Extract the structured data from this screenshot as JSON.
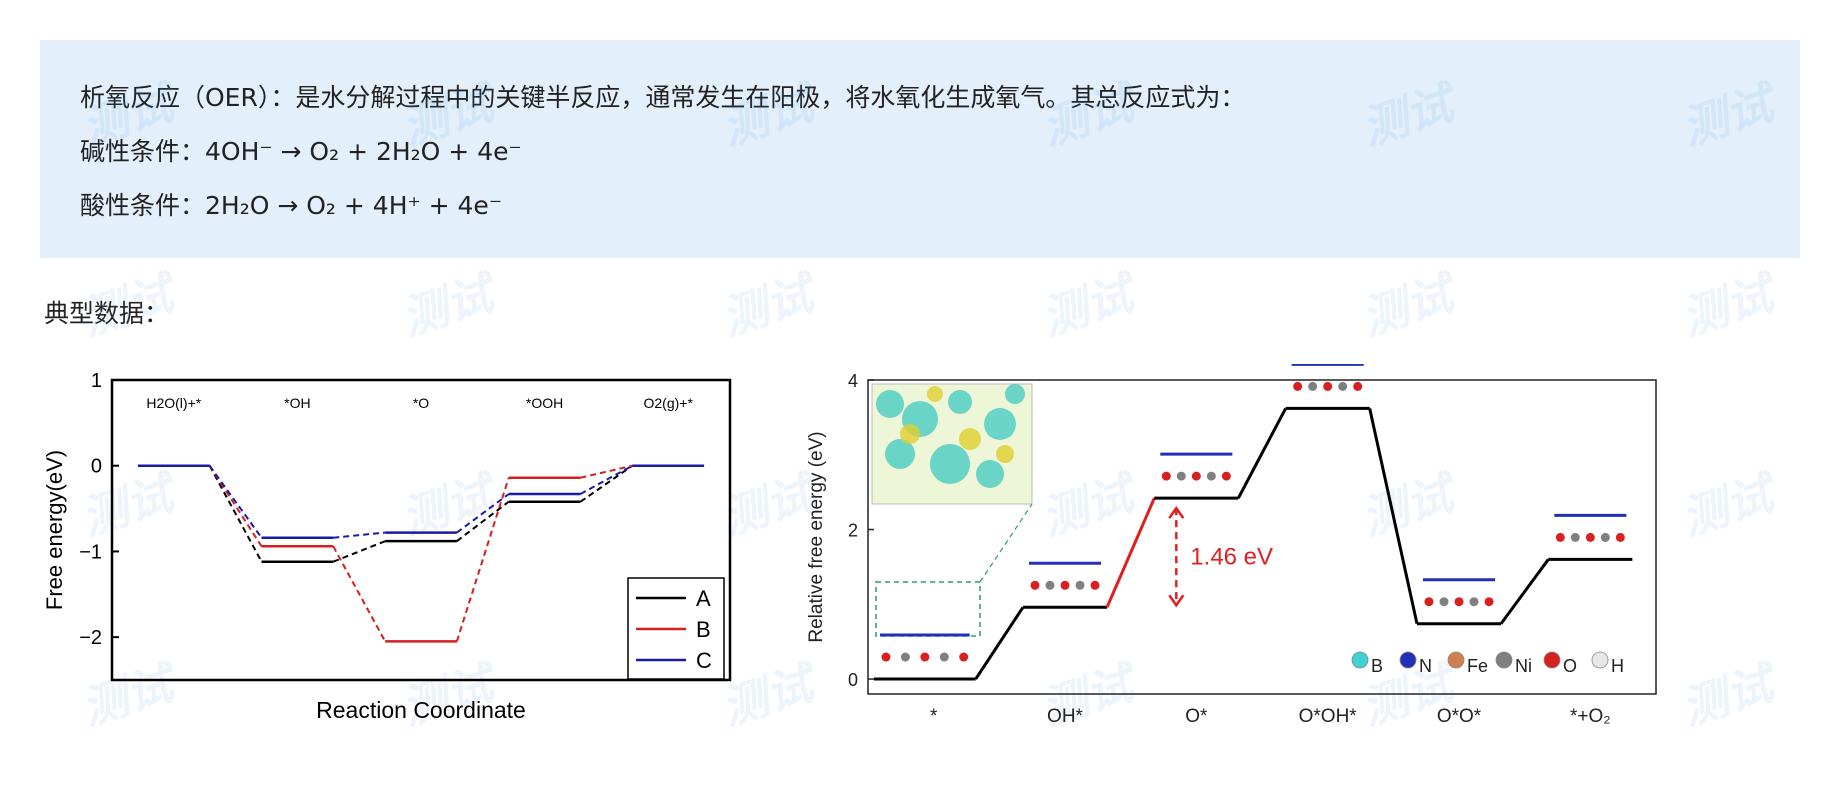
{
  "intro": {
    "line1": "析氧反应（OER）：是水分解过程中的关键半反应，通常发生在阳极，将水氧化生成氧气。其总反应式为：",
    "line2": "碱性条件：4OH⁻ → O₂ + 2H₂O + 4e⁻",
    "line3": "酸性条件：2H₂O → O₂ + 4H⁺ + 4e⁻"
  },
  "section_label": "典型数据：",
  "watermark_text": "测试",
  "chart_data": [
    {
      "type": "line",
      "xlabel": "Reaction Coordinate",
      "ylabel": "Free energy(eV)",
      "ylim": [
        -2.5,
        1
      ],
      "yticks": [
        1,
        0,
        -1,
        -2
      ],
      "ytick_labels": [
        "1",
        "0",
        "−1",
        "−2"
      ],
      "step_labels": [
        "H2O(l)+*",
        "*OH",
        "*O",
        "*OOH",
        "O2(g)+*"
      ],
      "series": [
        {
          "name": "A",
          "color": "#000000",
          "values": [
            0,
            -1.12,
            -0.88,
            -0.42,
            0
          ]
        },
        {
          "name": "B",
          "color": "#d42020",
          "values": [
            0,
            -0.94,
            -2.05,
            -0.14,
            0
          ]
        },
        {
          "name": "C",
          "color": "#1a1aa8",
          "values": [
            0,
            -0.84,
            -0.78,
            -0.33,
            0
          ]
        }
      ],
      "legend": "bottom-right",
      "grid": false
    },
    {
      "type": "line",
      "ylabel": "Relative free energy (eV)",
      "ylim": [
        -0.2,
        4
      ],
      "yticks": [
        0,
        2,
        4
      ],
      "ytick_labels": [
        "0",
        "2",
        "4"
      ],
      "categories": [
        "*",
        "OH*",
        "O*",
        "O*OH*",
        "O*O*",
        "*+O₂"
      ],
      "values": [
        0,
        0.96,
        2.42,
        3.62,
        0.74,
        1.6
      ],
      "line_color": "#000000",
      "highlight": {
        "from": 1,
        "to": 2,
        "color": "#e02020",
        "label": "1.46 eV"
      },
      "legend_items": [
        {
          "label": "B",
          "color": "#3fd0d8"
        },
        {
          "label": "N",
          "color": "#2030b8"
        },
        {
          "label": "Fe",
          "color": "#d08050"
        },
        {
          "label": "Ni",
          "color": "#808080"
        },
        {
          "label": "O",
          "color": "#d82020"
        },
        {
          "label": "H",
          "color": "#e8e8e8"
        }
      ],
      "legend": "bottom-right",
      "grid": false
    }
  ]
}
